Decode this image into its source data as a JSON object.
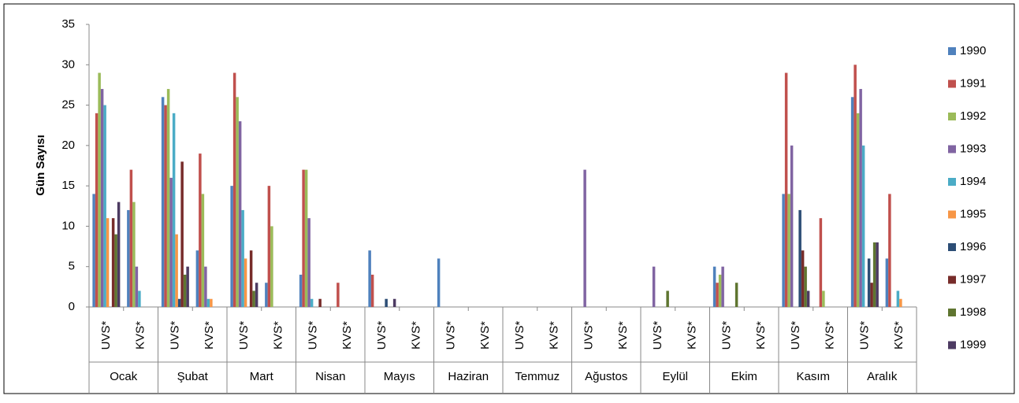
{
  "chart_data": {
    "type": "bar",
    "y_label": "Gün Sayısı",
    "groups": [
      "Ocak",
      "Şubat",
      "Mart",
      "Nisan",
      "Mayıs",
      "Haziran",
      "Temmuz",
      "Ağustos",
      "Eylül",
      "Ekim",
      "Kasım",
      "Aralık"
    ],
    "categories": [
      "UVS*",
      "KVS*",
      "UVS*",
      "KVS*",
      "UVS*",
      "KVS*",
      "UVS*",
      "KVS*",
      "UVS*",
      "KVS*",
      "UVS*",
      "KVS*",
      "UVS*",
      "KVS*",
      "UVS*",
      "KVS*",
      "UVS*",
      "KVS*",
      "UVS*",
      "KVS*",
      "UVS*",
      "KVS*",
      "UVS*",
      "KVS*"
    ],
    "ylim": [
      0,
      35
    ],
    "yticks": [
      0,
      5,
      10,
      15,
      20,
      25,
      30,
      35
    ],
    "series": [
      {
        "name": "1990",
        "color": "#4f81bd",
        "values": [
          14,
          12,
          26,
          7,
          15,
          3,
          4,
          0,
          7,
          0,
          6,
          0,
          0,
          0,
          0,
          0,
          0,
          0,
          5,
          0,
          14,
          0,
          26,
          6
        ]
      },
      {
        "name": "1991",
        "color": "#c0504d",
        "values": [
          24,
          17,
          25,
          19,
          29,
          15,
          17,
          3,
          4,
          0,
          0,
          0,
          0,
          0,
          0,
          0,
          0,
          0,
          3,
          0,
          29,
          11,
          30,
          14
        ]
      },
      {
        "name": "1992",
        "color": "#9bbb59",
        "values": [
          29,
          13,
          27,
          14,
          26,
          10,
          17,
          0,
          0,
          0,
          0,
          0,
          0,
          0,
          0,
          0,
          0,
          0,
          4,
          0,
          14,
          2,
          24,
          0
        ]
      },
      {
        "name": "1993",
        "color": "#8064a2",
        "values": [
          27,
          5,
          16,
          5,
          23,
          0,
          11,
          0,
          0,
          0,
          0,
          0,
          0,
          0,
          17,
          0,
          5,
          0,
          5,
          0,
          20,
          0,
          27,
          0
        ]
      },
      {
        "name": "1994",
        "color": "#4bacc6",
        "values": [
          25,
          2,
          24,
          1,
          12,
          0,
          1,
          0,
          0,
          0,
          0,
          0,
          0,
          0,
          0,
          0,
          0,
          0,
          0,
          0,
          0,
          0,
          20,
          2
        ]
      },
      {
        "name": "1995",
        "color": "#f79646",
        "values": [
          11,
          0,
          9,
          1,
          6,
          0,
          0,
          0,
          0,
          0,
          0,
          0,
          0,
          0,
          0,
          0,
          0,
          0,
          0,
          0,
          0,
          0,
          0,
          1
        ]
      },
      {
        "name": "1996",
        "color": "#2c4d75",
        "values": [
          0,
          0,
          1,
          0,
          0,
          0,
          0,
          0,
          1,
          0,
          0,
          0,
          0,
          0,
          0,
          0,
          0,
          0,
          0,
          0,
          12,
          0,
          6,
          0
        ]
      },
      {
        "name": "1997",
        "color": "#772c2a",
        "values": [
          11,
          0,
          18,
          0,
          7,
          0,
          1,
          0,
          0,
          0,
          0,
          0,
          0,
          0,
          0,
          0,
          0,
          0,
          0,
          0,
          7,
          0,
          3,
          0
        ]
      },
      {
        "name": "1998",
        "color": "#5f7530",
        "values": [
          9,
          0,
          4,
          0,
          2,
          0,
          0,
          0,
          0,
          0,
          0,
          0,
          0,
          0,
          0,
          0,
          2,
          0,
          3,
          0,
          5,
          0,
          8,
          0
        ]
      },
      {
        "name": "1999",
        "color": "#4d3b62",
        "values": [
          13,
          0,
          5,
          0,
          3,
          0,
          0,
          0,
          1,
          0,
          0,
          0,
          0,
          0,
          0,
          0,
          0,
          0,
          0,
          0,
          2,
          0,
          8,
          0
        ]
      }
    ]
  }
}
